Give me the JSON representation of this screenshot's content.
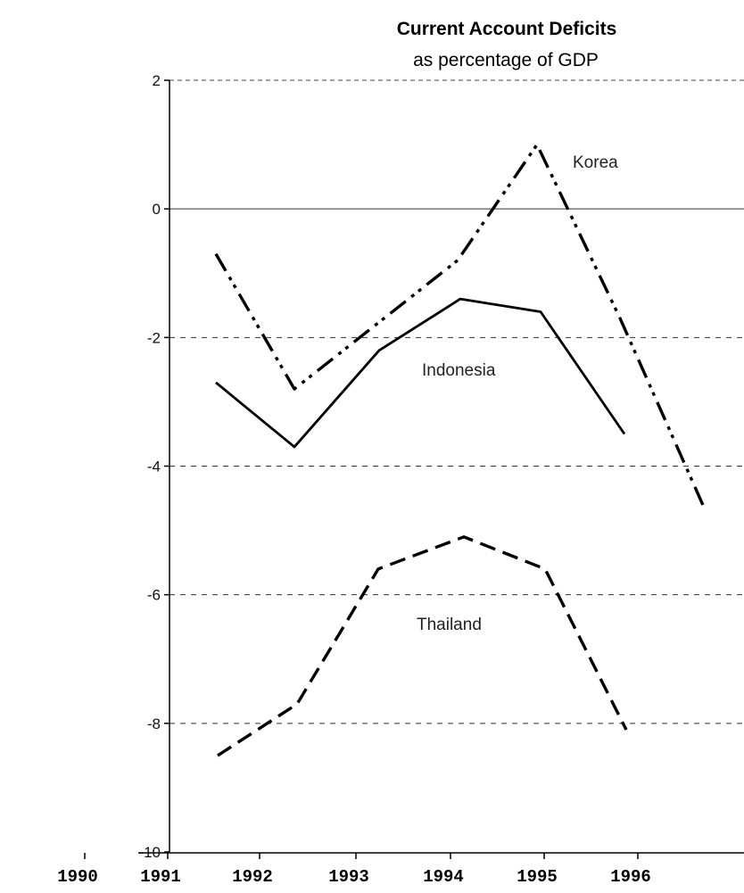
{
  "chart_data": {
    "type": "line",
    "title": "Current Account Deficits",
    "subtitle": "as percentage of GDP",
    "xlabel": "",
    "ylabel": "",
    "ylim": [
      -10,
      2
    ],
    "y_ticks": [
      "2",
      "0",
      "-2",
      "-4",
      "-6",
      "-8",
      "-10"
    ],
    "y_tick_values": [
      2,
      0,
      -2,
      -4,
      -6,
      -8,
      -10
    ],
    "x_ticks": [
      "1990",
      "1991",
      "1992",
      "1993",
      "1994",
      "1995",
      "1996"
    ],
    "grid": "horizontal dashed",
    "series": [
      {
        "name": "Korea",
        "style": "dash-dot-dot",
        "x": [
          1990,
          1991,
          1992,
          1993,
          1994,
          1995
        ],
        "values": [
          -0.7,
          -2.8,
          -0.8,
          1.0,
          -1.7,
          -4.7
        ]
      },
      {
        "name": "Indonesia",
        "style": "solid",
        "x": [
          1990,
          1991,
          1992,
          1993,
          1994,
          1995
        ],
        "values": [
          -2.7,
          -3.7,
          -2.2,
          -1.4,
          -1.6,
          -3.5
        ]
      },
      {
        "name": "Thailand",
        "style": "dashed",
        "x": [
          1990,
          1991,
          1992,
          1993,
          1994,
          1995
        ],
        "values": [
          -8.5,
          -7.7,
          -5.6,
          -5.1,
          -5.6,
          -8.1
        ]
      }
    ]
  }
}
